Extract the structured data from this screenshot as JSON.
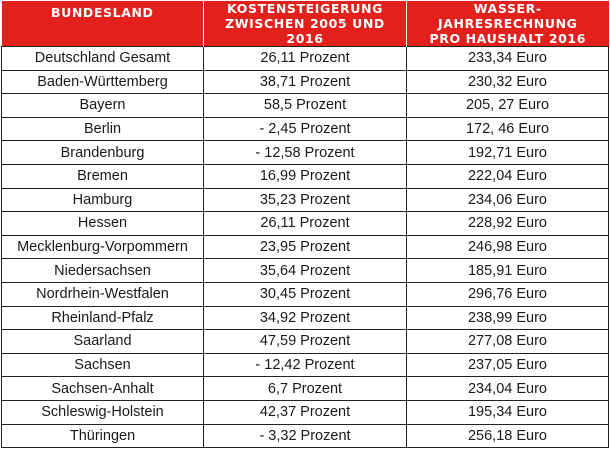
{
  "table": {
    "headers": [
      "BUNDESLAND",
      "KOSTENSTEIGERUNG\nZWISCHEN 2005 UND 2016",
      "WASSER-JAHRESRECHNUNG\nPRO HAUSHALT 2016"
    ],
    "header_lines": {
      "col1": [
        "BUNDESLAND"
      ],
      "col2": [
        "KOSTENSTEIGERUNG",
        "ZWISCHEN 2005 UND 2016"
      ],
      "col3": [
        "WASSER-JAHRESRECHNUNG",
        "PRO HAUSHALT 2016"
      ]
    },
    "rows": [
      [
        "Deutschland Gesamt",
        "26,11 Prozent",
        "233,34 Euro"
      ],
      [
        "Baden-Württemberg",
        "38,71 Prozent",
        "230,32 Euro"
      ],
      [
        "Bayern",
        "58,5 Prozent",
        "205, 27 Euro"
      ],
      [
        "Berlin",
        "- 2,45 Prozent",
        "172, 46 Euro"
      ],
      [
        "Brandenburg",
        "- 12,58 Prozent",
        "192,71 Euro"
      ],
      [
        "Bremen",
        "16,99 Prozent",
        "222,04 Euro"
      ],
      [
        "Hamburg",
        "35,23 Prozent",
        "234,06 Euro"
      ],
      [
        "Hessen",
        "26,11 Prozent",
        "228,92 Euro"
      ],
      [
        "Mecklenburg-Vorpommern",
        "23,95 Prozent",
        "246,98 Euro"
      ],
      [
        "Niedersachsen",
        "35,64 Prozent",
        "185,91 Euro"
      ],
      [
        "Nordrhein-Westfalen",
        "30,45 Prozent",
        "296,76 Euro"
      ],
      [
        "Rheinland-Pfalz",
        "34,92 Prozent",
        "238,99 Euro"
      ],
      [
        "Saarland",
        "47,59 Prozent",
        "277,08 Euro"
      ],
      [
        "Sachsen",
        "- 12,42 Prozent",
        "237,05 Euro"
      ],
      [
        "Sachsen-Anhalt",
        "6,7 Prozent",
        "234,04 Euro"
      ],
      [
        "Schleswig-Holstein",
        "42,37 Prozent",
        "195,34 Euro"
      ],
      [
        "Thüringen",
        "- 3,32 Prozent",
        "256,18 Euro"
      ]
    ]
  },
  "colors": {
    "header_bg": "#e3201b",
    "header_text": "#ffffff",
    "border": "#222222",
    "cell_text": "#1a1a1a"
  }
}
